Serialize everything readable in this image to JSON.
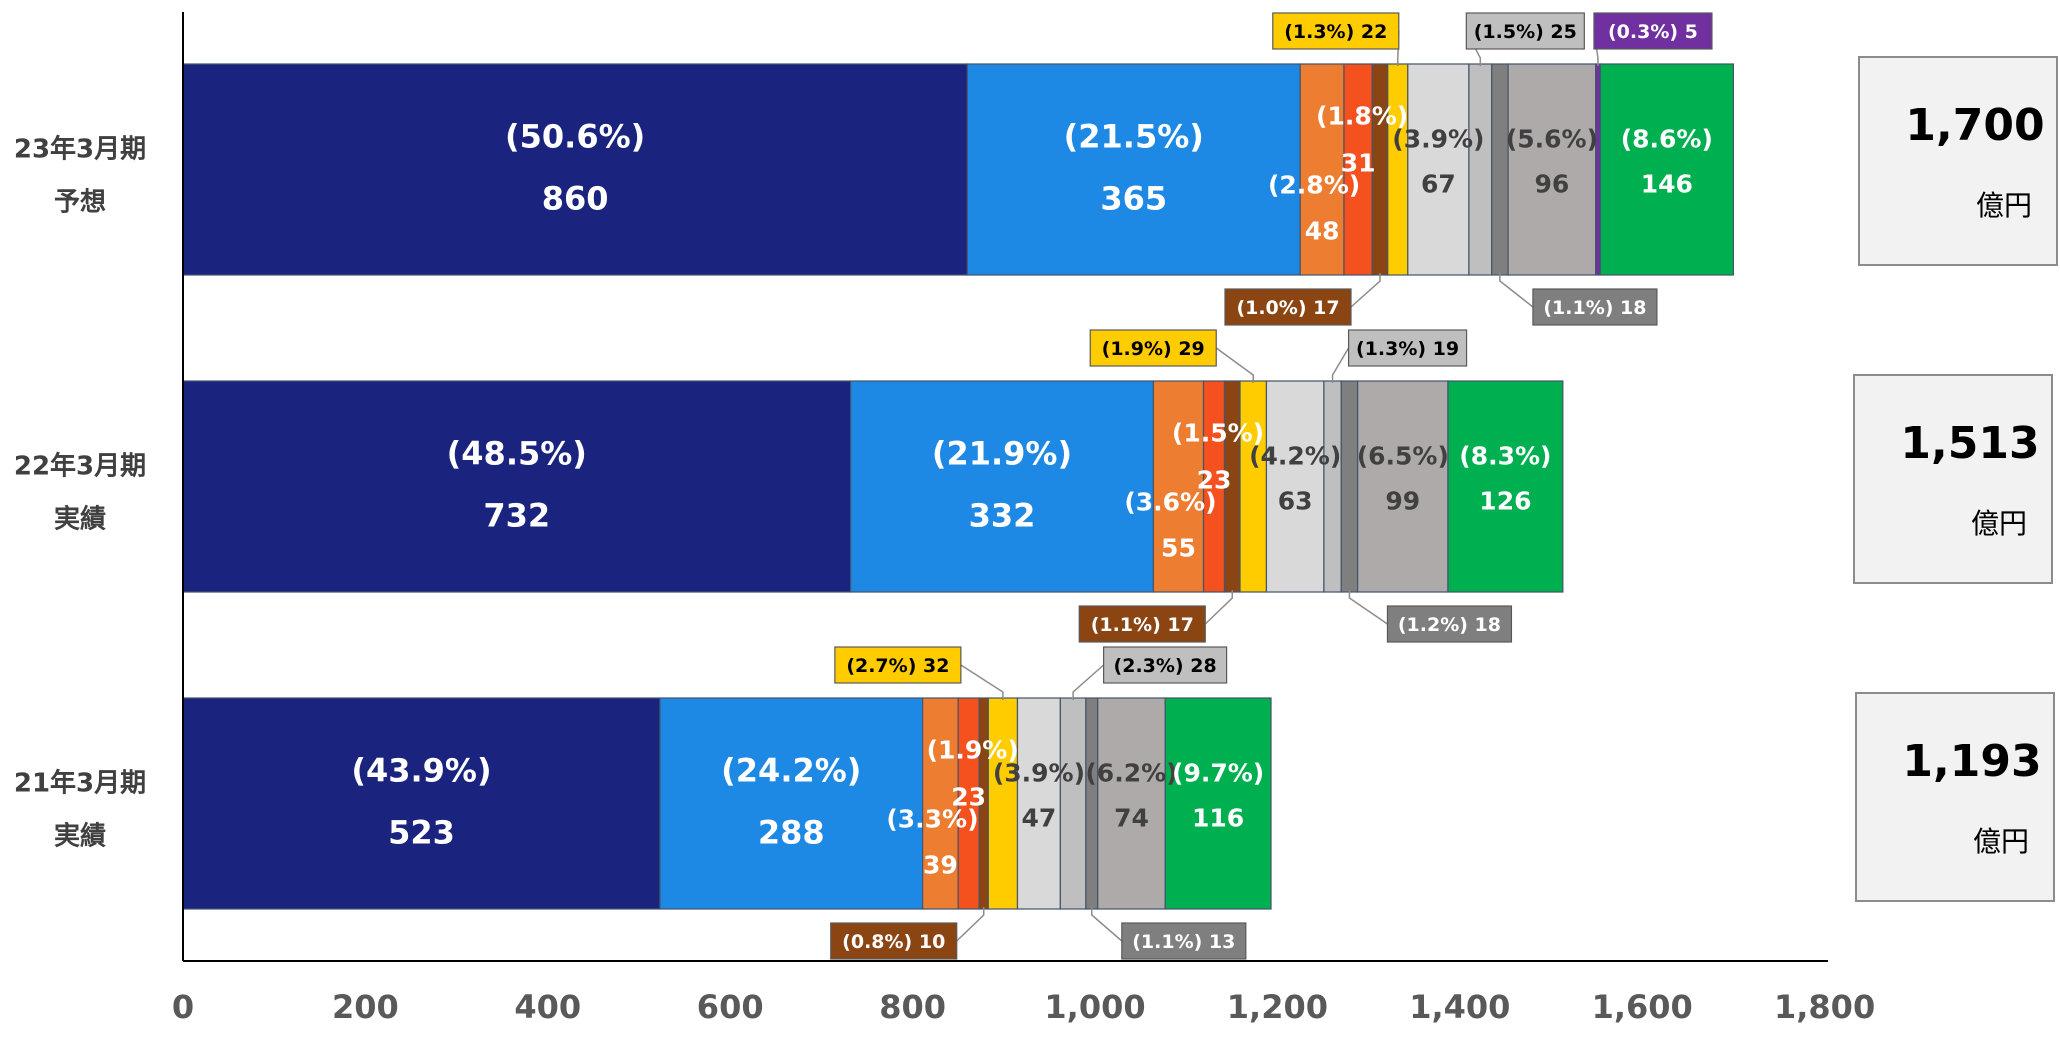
{
  "chart_data": {
    "type": "bar",
    "orientation": "horizontal",
    "stacked": true,
    "xlim": [
      0,
      1800
    ],
    "x_ticks": [
      "0",
      "200",
      "400",
      "600",
      "800",
      "1,000",
      "1,200",
      "1,400",
      "1,600",
      "1,800"
    ],
    "categories": [
      {
        "line1": "23年3月期",
        "line2": "予想"
      },
      {
        "line1": "22年3月期",
        "line2": "実績"
      },
      {
        "line1": "21年3月期",
        "line2": "実績"
      }
    ],
    "totals": [
      {
        "value": "1,700",
        "unit": "億円"
      },
      {
        "value": "1,513",
        "unit": "億円"
      },
      {
        "value": "1,193",
        "unit": "億円"
      }
    ],
    "colors": [
      "#1a237e",
      "#1e88e5",
      "#ed7d31",
      "#f4511e",
      "#8b4513",
      "#ffcc00",
      "#d9d9d9",
      "#bfbfbf",
      "#7f7f7f",
      "#aeaaaa",
      "#7030a0",
      "#00b050"
    ],
    "series": [
      {
        "values": [
          860,
          732,
          523
        ],
        "labels": [
          "(50.6%)",
          "(48.5%)",
          "(43.9%)"
        ]
      },
      {
        "values": [
          365,
          332,
          288
        ],
        "labels": [
          "(21.5%)",
          "(21.9%)",
          "(24.2%)"
        ]
      },
      {
        "values": [
          48,
          55,
          39
        ],
        "labels": [
          "(2.8%)",
          "(3.6%)",
          "(3.3%)"
        ]
      },
      {
        "values": [
          31,
          23,
          23
        ],
        "labels": [
          "(1.8%)",
          "(1.5%)",
          "(1.9%)"
        ]
      },
      {
        "values": [
          17,
          17,
          10
        ],
        "labels": [
          "(1.0%) 17",
          "(1.1%) 17",
          "(0.8%) 10"
        ]
      },
      {
        "values": [
          22,
          29,
          32
        ],
        "labels": [
          "(1.3%) 22",
          "(1.9%) 29",
          "(2.7%) 32"
        ]
      },
      {
        "values": [
          67,
          63,
          47
        ],
        "labels": [
          "(3.9%)",
          "(4.2%)",
          "(3.9%)"
        ]
      },
      {
        "values": [
          25,
          19,
          28
        ],
        "labels": [
          "(1.5%) 25",
          "(1.3%) 19",
          "(2.3%) 28"
        ]
      },
      {
        "values": [
          18,
          18,
          13
        ],
        "labels": [
          "(1.1%) 18",
          "(1.2%) 18",
          "(1.1%) 13"
        ]
      },
      {
        "values": [
          96,
          99,
          74
        ],
        "labels": [
          "(5.6%)",
          "(6.5%)",
          "(6.2%)"
        ]
      },
      {
        "values": [
          5,
          0,
          0
        ],
        "labels": [
          "(0.3%) 5",
          "",
          ""
        ]
      },
      {
        "values": [
          146,
          126,
          116
        ],
        "labels": [
          "(8.6%)",
          "(8.3%)",
          "(9.7%)"
        ]
      }
    ]
  }
}
